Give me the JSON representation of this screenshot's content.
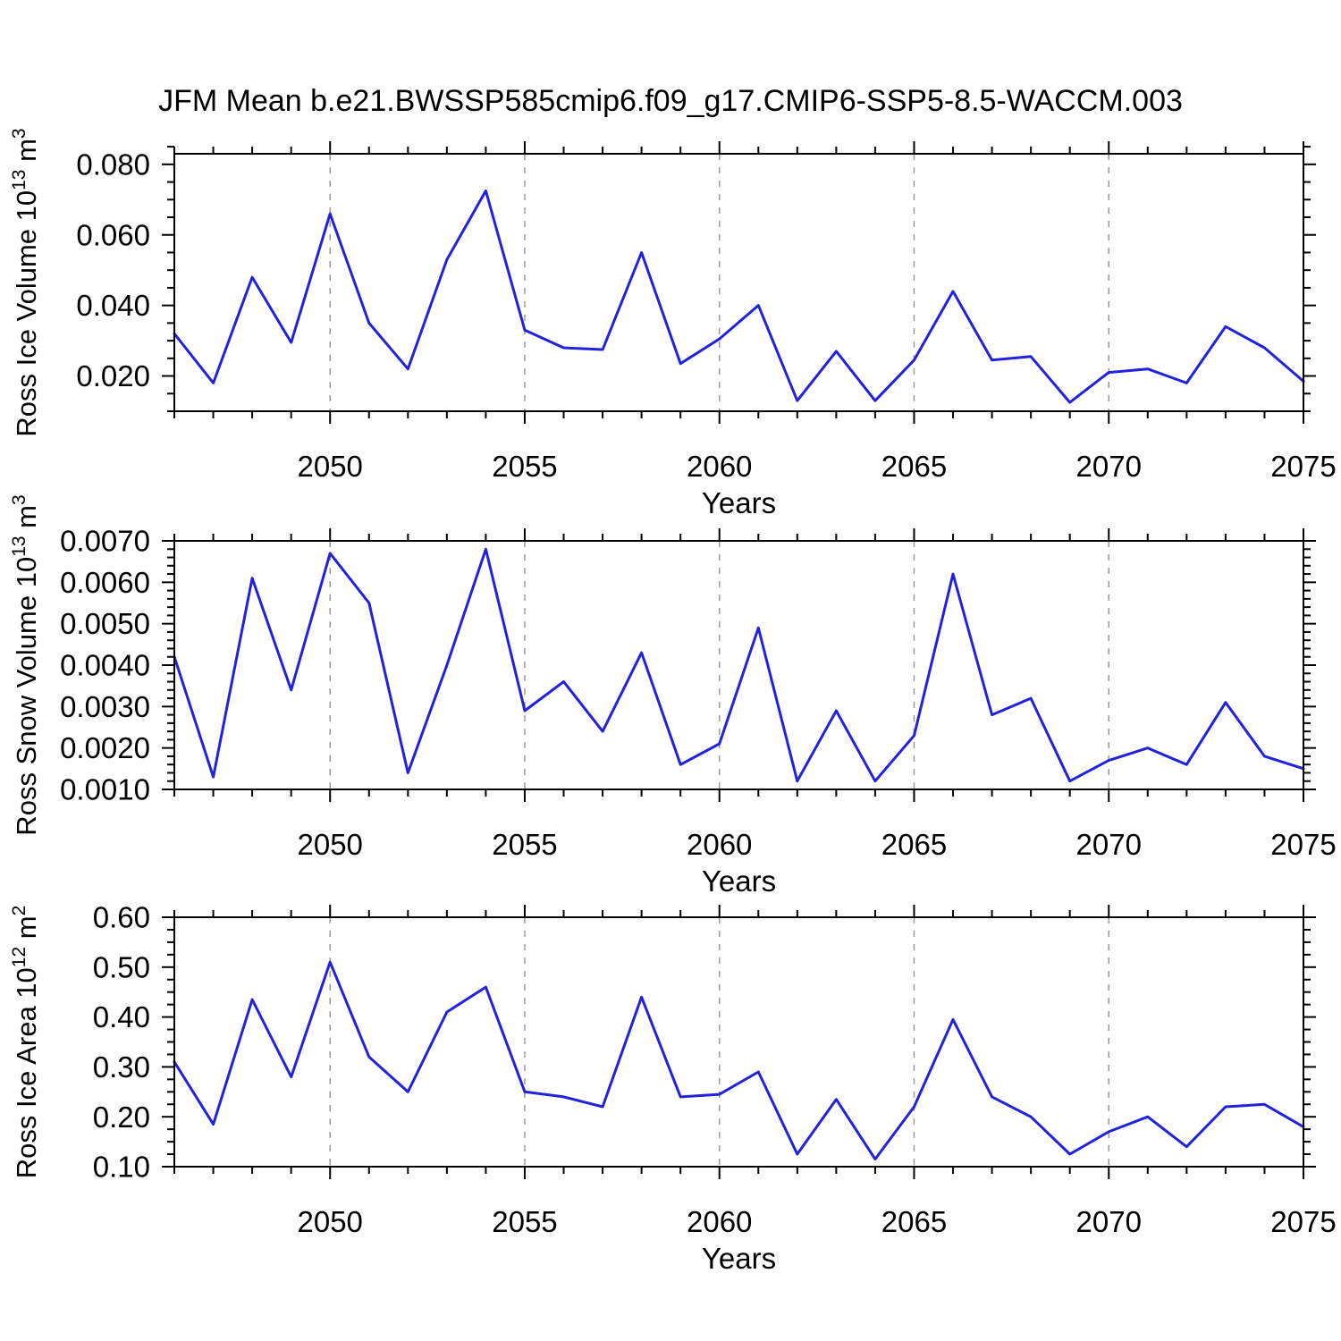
{
  "title": "JFM Mean b.e21.BWSSP585cmip6.f09_g17.CMIP6-SSP5-8.5-WACCM.003",
  "colors": {
    "line": "#2222dd",
    "grid": "#9a9a9a",
    "frame": "#000000",
    "background": "#ffffff"
  },
  "chart_data": [
    {
      "type": "line",
      "name": "ross-ice-volume",
      "ylabel": "Ross Ice Volume 10^13 m^3",
      "xlabel": "Years",
      "x": [
        2046,
        2047,
        2048,
        2049,
        2050,
        2051,
        2052,
        2053,
        2054,
        2055,
        2056,
        2057,
        2058,
        2059,
        2060,
        2061,
        2062,
        2063,
        2064,
        2065,
        2066,
        2067,
        2068,
        2069,
        2070,
        2071,
        2072,
        2073,
        2074,
        2075
      ],
      "values": [
        0.032,
        0.018,
        0.048,
        0.0295,
        0.066,
        0.035,
        0.022,
        0.053,
        0.0725,
        0.033,
        0.028,
        0.0275,
        0.055,
        0.0235,
        0.0305,
        0.04,
        0.013,
        0.027,
        0.013,
        0.0245,
        0.044,
        0.0245,
        0.0255,
        0.0125,
        0.021,
        0.022,
        0.018,
        0.034,
        0.028,
        0.0185
      ],
      "xlim": [
        2046,
        2075
      ],
      "ylim": [
        0.01,
        0.083
      ],
      "xticks": [
        2050,
        2055,
        2060,
        2065,
        2070,
        2075
      ],
      "xtick_labels": [
        "2050",
        "2055",
        "2060",
        "2065",
        "2070",
        "2075"
      ],
      "yticks": [
        0.02,
        0.04,
        0.06,
        0.08
      ],
      "ytick_labels": [
        "0.020",
        "0.040",
        "0.060",
        "0.080"
      ],
      "x_minor_step": 1,
      "y_minor_step": 0.005,
      "gridline_years": [
        2050,
        2055,
        2060,
        2065,
        2070
      ],
      "grid": "vertical-dashed",
      "legend": "none"
    },
    {
      "type": "line",
      "name": "ross-snow-volume",
      "ylabel": "Ross Snow Volume 10^13 m^3",
      "xlabel": "Years",
      "x": [
        2046,
        2047,
        2048,
        2049,
        2050,
        2051,
        2052,
        2053,
        2054,
        2055,
        2056,
        2057,
        2058,
        2059,
        2060,
        2061,
        2062,
        2063,
        2064,
        2065,
        2066,
        2067,
        2068,
        2069,
        2070,
        2071,
        2072,
        2073,
        2074,
        2075
      ],
      "values": [
        0.0042,
        0.0013,
        0.0061,
        0.0034,
        0.0067,
        0.0055,
        0.0014,
        0.004,
        0.0068,
        0.0029,
        0.0036,
        0.0024,
        0.0043,
        0.0016,
        0.0021,
        0.0049,
        0.0012,
        0.0029,
        0.0012,
        0.0023,
        0.0062,
        0.0028,
        0.0032,
        0.0012,
        0.0017,
        0.002,
        0.0016,
        0.0031,
        0.0018,
        0.0015
      ],
      "xlim": [
        2046,
        2075
      ],
      "ylim": [
        0.001,
        0.007
      ],
      "xticks": [
        2050,
        2055,
        2060,
        2065,
        2070,
        2075
      ],
      "xtick_labels": [
        "2050",
        "2055",
        "2060",
        "2065",
        "2070",
        "2075"
      ],
      "yticks": [
        0.001,
        0.002,
        0.003,
        0.004,
        0.005,
        0.006,
        0.007
      ],
      "ytick_labels": [
        "0.0010",
        "0.0020",
        "0.0030",
        "0.0040",
        "0.0050",
        "0.0060",
        "0.0070"
      ],
      "x_minor_step": 1,
      "y_minor_step": 0.0002,
      "gridline_years": [
        2050,
        2055,
        2060,
        2065,
        2070
      ],
      "grid": "vertical-dashed",
      "legend": "none"
    },
    {
      "type": "line",
      "name": "ross-ice-area",
      "ylabel": "Ross Ice Area 10^12 m^2",
      "xlabel": "Years",
      "x": [
        2046,
        2047,
        2048,
        2049,
        2050,
        2051,
        2052,
        2053,
        2054,
        2055,
        2056,
        2057,
        2058,
        2059,
        2060,
        2061,
        2062,
        2063,
        2064,
        2065,
        2066,
        2067,
        2068,
        2069,
        2070,
        2071,
        2072,
        2073,
        2074,
        2075
      ],
      "values": [
        0.31,
        0.185,
        0.435,
        0.28,
        0.51,
        0.32,
        0.25,
        0.41,
        0.46,
        0.25,
        0.24,
        0.22,
        0.44,
        0.24,
        0.245,
        0.29,
        0.125,
        0.235,
        0.115,
        0.22,
        0.395,
        0.24,
        0.2,
        0.125,
        0.17,
        0.2,
        0.14,
        0.22,
        0.225,
        0.18
      ],
      "xlim": [
        2046,
        2075
      ],
      "ylim": [
        0.1,
        0.6
      ],
      "xticks": [
        2050,
        2055,
        2060,
        2065,
        2070,
        2075
      ],
      "xtick_labels": [
        "2050",
        "2055",
        "2060",
        "2065",
        "2070",
        "2075"
      ],
      "yticks": [
        0.1,
        0.2,
        0.3,
        0.4,
        0.5,
        0.6
      ],
      "ytick_labels": [
        "0.10",
        "0.20",
        "0.30",
        "0.40",
        "0.50",
        "0.60"
      ],
      "x_minor_step": 1,
      "y_minor_step": 0.025,
      "gridline_years": [
        2050,
        2055,
        2060,
        2065,
        2070
      ],
      "grid": "vertical-dashed",
      "legend": "none"
    }
  ]
}
